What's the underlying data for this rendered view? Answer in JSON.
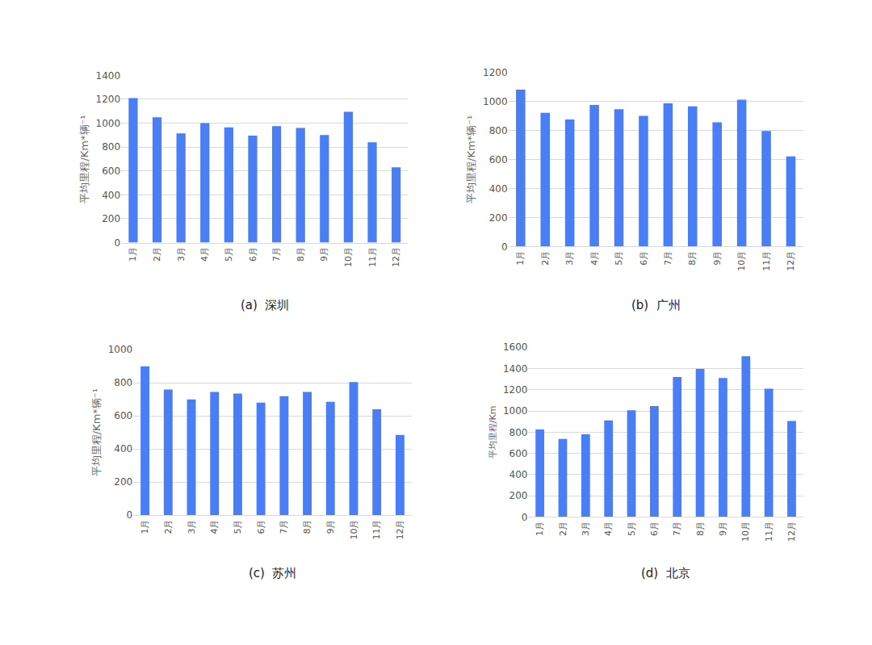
{
  "chart_data": [
    {
      "type": "bar",
      "title": "(a)  深圳",
      "y_label": "平均里程/Km*辆⁻¹",
      "categories": [
        "1月",
        "2月",
        "3月",
        "4月",
        "5月",
        "6月",
        "7月",
        "8月",
        "9月",
        "10月",
        "11月",
        "12月"
      ],
      "values": [
        1210,
        1050,
        915,
        1000,
        965,
        895,
        975,
        960,
        900,
        1095,
        840,
        630
      ],
      "color": "#4a7ef5",
      "ylim": [
        0,
        1400
      ],
      "yticks": [
        0,
        200,
        400,
        600,
        800,
        1000,
        1200,
        1400
      ],
      "grid": true
    },
    {
      "type": "bar",
      "title": "(b)  广州",
      "y_label": "平均里程/Km*辆⁻¹",
      "categories": [
        "1月",
        "2月",
        "3月",
        "4月",
        "5月",
        "6月",
        "7月",
        "8月",
        "9月",
        "10月",
        "11月",
        "12月"
      ],
      "values": [
        1080,
        920,
        875,
        975,
        945,
        900,
        985,
        965,
        855,
        1010,
        795,
        620
      ],
      "color": "#4a7ef5",
      "ylim": [
        0,
        1200
      ],
      "yticks": [
        0,
        200,
        400,
        600,
        800,
        1000,
        1200
      ],
      "grid": true
    },
    {
      "type": "bar",
      "title": "(c)  苏州",
      "y_label": "平均里程/Km*辆⁻¹",
      "categories": [
        "1月",
        "2月",
        "3月",
        "4月",
        "5月",
        "6月",
        "7月",
        "8月",
        "9月",
        "10月",
        "11月",
        "12月"
      ],
      "values": [
        900,
        760,
        700,
        745,
        735,
        680,
        720,
        745,
        685,
        805,
        640,
        485
      ],
      "color": "#4a7ef5",
      "ylim": [
        0,
        1000
      ],
      "yticks": [
        0,
        200,
        400,
        600,
        800,
        1000
      ],
      "grid": true
    },
    {
      "type": "bar",
      "title": "(d)  北京",
      "y_label": "平均里程/Km",
      "categories": [
        "1月",
        "2月",
        "3月",
        "4月",
        "5月",
        "6月",
        "7月",
        "8月",
        "9月",
        "10月",
        "11月",
        "12月"
      ],
      "values": [
        825,
        735,
        780,
        910,
        1005,
        1045,
        1320,
        1395,
        1310,
        1515,
        1210,
        905
      ],
      "color": "#4a7ef5",
      "ylim": [
        0,
        1600
      ],
      "yticks": [
        0,
        200,
        400,
        600,
        800,
        1000,
        1200,
        1400,
        1600
      ],
      "grid": true
    }
  ]
}
